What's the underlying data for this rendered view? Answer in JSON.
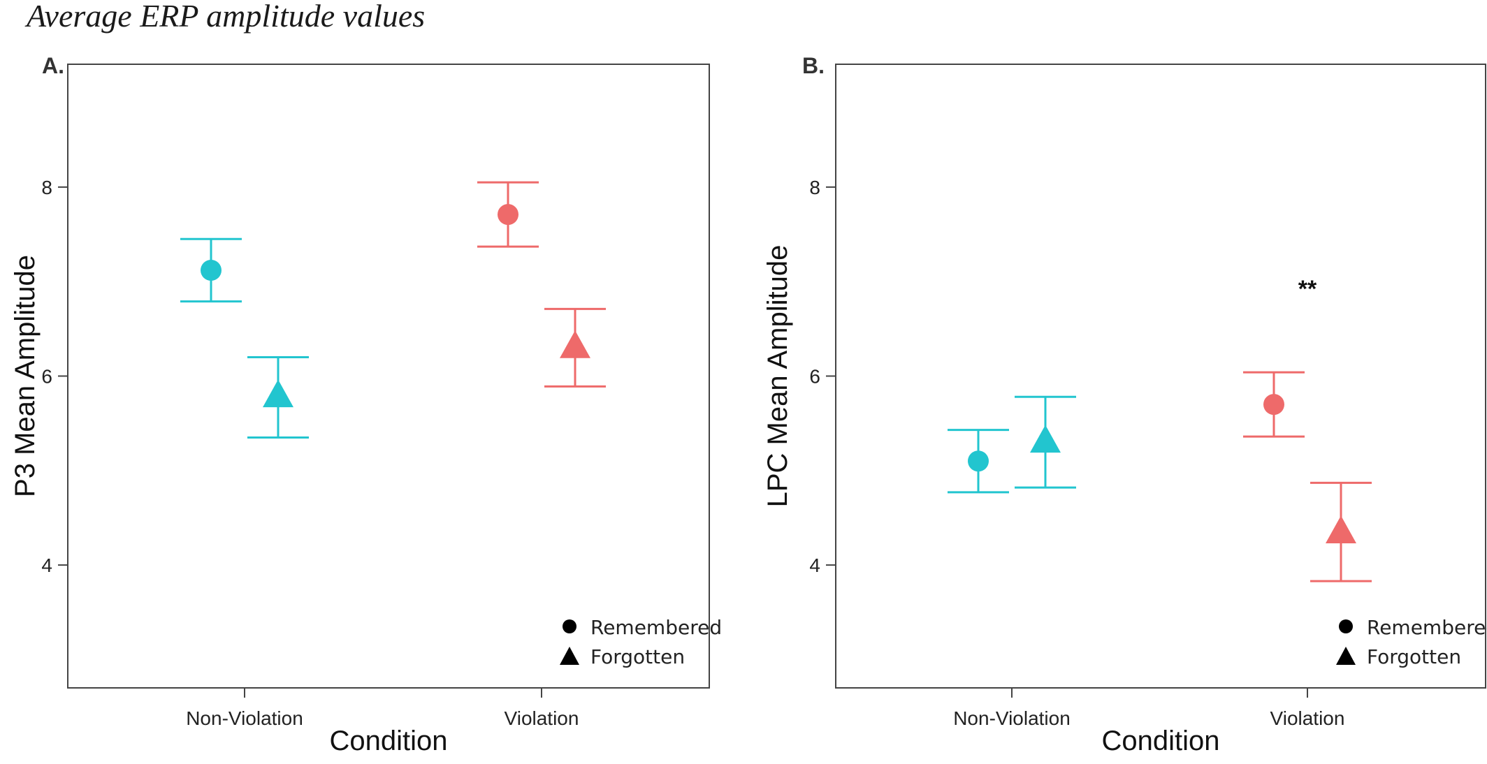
{
  "figure_title": "Average ERP amplitude values",
  "colors": {
    "non_violation": "#22C5CF",
    "violation": "#EE6A6A",
    "axis": "#444444",
    "legend_marker": "#000000"
  },
  "chart_data": [
    {
      "panel_label": "A.",
      "type": "scatter",
      "xlabel": "Condition",
      "ylabel": "P3 Mean Amplitude",
      "categories": [
        "Non-Violation",
        "Violation"
      ],
      "ylim": [
        2.7,
        9.3
      ],
      "yticks": [
        "4",
        "6",
        "8"
      ],
      "legend": {
        "placement": "bottom-right",
        "entries": [
          {
            "label": "Remembered",
            "marker": "circle"
          },
          {
            "label": "Forgotten",
            "marker": "triangle"
          }
        ]
      },
      "series": [
        {
          "category": "Non-Violation",
          "memory": "Remembered",
          "marker": "circle",
          "color": "#22C5CF",
          "mean": 7.12,
          "lower": 6.79,
          "upper": 7.45
        },
        {
          "category": "Non-Violation",
          "memory": "Forgotten",
          "marker": "triangle",
          "color": "#22C5CF",
          "mean": 5.8,
          "lower": 5.35,
          "upper": 6.2
        },
        {
          "category": "Violation",
          "memory": "Remembered",
          "marker": "circle",
          "color": "#EE6A6A",
          "mean": 7.71,
          "lower": 7.37,
          "upper": 8.05
        },
        {
          "category": "Violation",
          "memory": "Forgotten",
          "marker": "triangle",
          "color": "#EE6A6A",
          "mean": 6.32,
          "lower": 5.89,
          "upper": 6.71
        }
      ],
      "annotations": []
    },
    {
      "panel_label": "B.",
      "type": "scatter",
      "xlabel": "Condition",
      "ylabel": "LPC Mean Amplitude",
      "categories": [
        "Non-Violation",
        "Violation"
      ],
      "ylim": [
        2.7,
        9.3
      ],
      "yticks": [
        "4",
        "6",
        "8"
      ],
      "legend": {
        "placement": "bottom-right",
        "entries": [
          {
            "label": "Remembered",
            "marker": "circle"
          },
          {
            "label": "Forgotten",
            "marker": "triangle"
          }
        ]
      },
      "series": [
        {
          "category": "Non-Violation",
          "memory": "Remembered",
          "marker": "circle",
          "color": "#22C5CF",
          "mean": 5.1,
          "lower": 4.77,
          "upper": 5.43
        },
        {
          "category": "Non-Violation",
          "memory": "Forgotten",
          "marker": "triangle",
          "color": "#22C5CF",
          "mean": 5.32,
          "lower": 4.82,
          "upper": 5.78
        },
        {
          "category": "Violation",
          "memory": "Remembered",
          "marker": "circle",
          "color": "#EE6A6A",
          "mean": 5.7,
          "lower": 5.36,
          "upper": 6.04
        },
        {
          "category": "Violation",
          "memory": "Forgotten",
          "marker": "triangle",
          "color": "#EE6A6A",
          "mean": 4.36,
          "lower": 3.83,
          "upper": 4.87
        }
      ],
      "annotations": [
        {
          "text": "**",
          "category": "Violation",
          "y": 7.0
        }
      ]
    }
  ]
}
